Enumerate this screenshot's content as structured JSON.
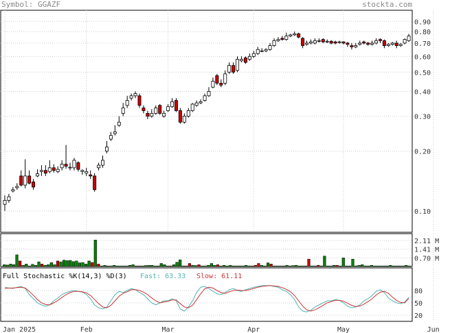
{
  "header": {
    "symbol_label": "Symbol: GGAZF",
    "site": "stockta.com"
  },
  "chart_data": {
    "type": "candlestick",
    "price": {
      "scale": "log",
      "ylim": [
        0.08,
        1.0
      ],
      "ticks": [
        "0.90",
        "0.80",
        "0.70",
        "0.60",
        "0.50",
        "0.40",
        "0.30",
        "0.20",
        "0.10"
      ],
      "tick_values": [
        0.9,
        0.8,
        0.7,
        0.6,
        0.5,
        0.4,
        0.3,
        0.2,
        0.1
      ],
      "close": [
        0.113,
        0.118,
        0.128,
        0.133,
        0.135,
        0.15,
        0.138,
        0.132,
        0.154,
        0.16,
        0.155,
        0.165,
        0.16,
        0.162,
        0.172,
        0.168,
        0.166,
        0.18,
        0.162,
        0.16,
        0.158,
        0.15,
        0.128,
        0.17,
        0.18,
        0.21,
        0.24,
        0.25,
        0.28,
        0.33,
        0.36,
        0.38,
        0.39,
        0.34,
        0.32,
        0.3,
        0.31,
        0.33,
        0.31,
        0.31,
        0.335,
        0.355,
        0.32,
        0.28,
        0.3,
        0.32,
        0.345,
        0.35,
        0.355,
        0.38,
        0.4,
        0.45,
        0.44,
        0.43,
        0.49,
        0.54,
        0.5,
        0.58,
        0.58,
        0.56,
        0.6,
        0.62,
        0.65,
        0.64,
        0.65,
        0.68,
        0.72,
        0.73,
        0.73,
        0.76,
        0.77,
        0.78,
        0.75,
        0.68,
        0.7,
        0.71,
        0.72,
        0.72,
        0.71,
        0.715,
        0.7,
        0.7,
        0.71,
        0.7,
        0.69,
        0.67,
        0.68,
        0.7,
        0.7,
        0.69,
        0.7,
        0.72,
        0.72,
        0.68,
        0.69,
        0.7,
        0.68,
        0.69,
        0.73,
        0.76
      ],
      "open": [
        0.108,
        0.113,
        0.126,
        0.131,
        0.15,
        0.135,
        0.15,
        0.14,
        0.15,
        0.158,
        0.16,
        0.158,
        0.165,
        0.158,
        0.165,
        0.172,
        0.165,
        0.165,
        0.175,
        0.158,
        0.155,
        0.152,
        0.15,
        0.165,
        0.17,
        0.2,
        0.23,
        0.245,
        0.27,
        0.31,
        0.34,
        0.37,
        0.38,
        0.38,
        0.33,
        0.31,
        0.3,
        0.31,
        0.34,
        0.3,
        0.32,
        0.335,
        0.36,
        0.32,
        0.28,
        0.3,
        0.32,
        0.34,
        0.35,
        0.36,
        0.38,
        0.42,
        0.48,
        0.44,
        0.44,
        0.5,
        0.54,
        0.51,
        0.57,
        0.59,
        0.58,
        0.6,
        0.62,
        0.64,
        0.64,
        0.65,
        0.68,
        0.72,
        0.74,
        0.73,
        0.76,
        0.77,
        0.78,
        0.74,
        0.69,
        0.7,
        0.7,
        0.72,
        0.73,
        0.71,
        0.715,
        0.71,
        0.705,
        0.71,
        0.7,
        0.68,
        0.67,
        0.69,
        0.71,
        0.7,
        0.69,
        0.7,
        0.73,
        0.72,
        0.68,
        0.69,
        0.7,
        0.68,
        0.7,
        0.72
      ],
      "high": [
        0.12,
        0.122,
        0.132,
        0.138,
        0.16,
        0.182,
        0.16,
        0.145,
        0.162,
        0.17,
        0.17,
        0.18,
        0.172,
        0.168,
        0.18,
        0.215,
        0.175,
        0.185,
        0.178,
        0.162,
        0.165,
        0.16,
        0.155,
        0.175,
        0.19,
        0.225,
        0.25,
        0.27,
        0.3,
        0.35,
        0.38,
        0.39,
        0.4,
        0.39,
        0.34,
        0.32,
        0.325,
        0.34,
        0.345,
        0.32,
        0.345,
        0.37,
        0.37,
        0.33,
        0.31,
        0.33,
        0.35,
        0.36,
        0.365,
        0.39,
        0.42,
        0.47,
        0.49,
        0.46,
        0.51,
        0.56,
        0.56,
        0.6,
        0.6,
        0.6,
        0.62,
        0.64,
        0.67,
        0.66,
        0.66,
        0.7,
        0.74,
        0.75,
        0.76,
        0.79,
        0.78,
        0.8,
        0.79,
        0.75,
        0.72,
        0.73,
        0.74,
        0.74,
        0.74,
        0.73,
        0.725,
        0.72,
        0.72,
        0.715,
        0.71,
        0.7,
        0.7,
        0.72,
        0.72,
        0.71,
        0.72,
        0.74,
        0.74,
        0.73,
        0.7,
        0.71,
        0.72,
        0.7,
        0.74,
        0.78
      ],
      "low": [
        0.1,
        0.11,
        0.124,
        0.128,
        0.133,
        0.13,
        0.136,
        0.128,
        0.148,
        0.15,
        0.15,
        0.155,
        0.156,
        0.155,
        0.16,
        0.163,
        0.16,
        0.16,
        0.158,
        0.152,
        0.15,
        0.145,
        0.125,
        0.16,
        0.165,
        0.195,
        0.225,
        0.24,
        0.265,
        0.3,
        0.33,
        0.36,
        0.37,
        0.33,
        0.31,
        0.29,
        0.295,
        0.305,
        0.305,
        0.295,
        0.315,
        0.33,
        0.315,
        0.275,
        0.275,
        0.295,
        0.315,
        0.335,
        0.345,
        0.355,
        0.375,
        0.415,
        0.43,
        0.42,
        0.43,
        0.49,
        0.49,
        0.5,
        0.56,
        0.55,
        0.57,
        0.59,
        0.61,
        0.63,
        0.63,
        0.64,
        0.67,
        0.71,
        0.72,
        0.72,
        0.75,
        0.76,
        0.74,
        0.66,
        0.68,
        0.69,
        0.69,
        0.705,
        0.7,
        0.7,
        0.69,
        0.69,
        0.695,
        0.69,
        0.67,
        0.65,
        0.66,
        0.68,
        0.69,
        0.68,
        0.68,
        0.69,
        0.7,
        0.66,
        0.67,
        0.68,
        0.66,
        0.67,
        0.69,
        0.71
      ]
    },
    "x_labels": [
      "Jan 2025",
      "Feb",
      "Mar",
      "Apr",
      "May",
      "Jun"
    ],
    "x_label_index": [
      0,
      20,
      40,
      61,
      83,
      105
    ],
    "volume": {
      "ticks": [
        "2.11 M",
        "1.41 M",
        "0.70 M"
      ],
      "tick_values": [
        2.11,
        1.41,
        0.7
      ],
      "max": 2.5,
      "values": [
        0.15,
        0.12,
        0.2,
        0.15,
        0.95,
        0.45,
        0.1,
        0.2,
        0.05,
        0.18,
        0.1,
        0.38,
        0.2,
        0.1,
        0.15,
        0.32,
        0.15,
        0.45,
        0.38,
        0.52,
        0.48,
        0.5,
        0.4,
        0.45,
        0.3,
        0.32,
        0.2,
        0.45,
        0.33,
        2.15,
        0.2,
        0.05,
        0.1,
        0.05,
        0.05,
        0.1,
        0.05,
        0.05,
        0.05,
        0.05,
        0.1,
        0.15,
        0.05,
        0.05,
        0.05,
        0.08,
        0.1,
        0.1,
        0.05,
        0.05,
        0.25,
        0.15,
        0.05,
        0.05,
        0.15,
        0.35,
        0.55,
        0.05,
        0.05,
        0.25,
        0.1,
        0.08,
        0.15,
        0.05,
        0.05,
        0.1,
        0.25,
        0.1,
        0.15,
        0.05,
        0.1,
        0.05,
        0.1,
        0.05,
        0.05,
        0.05,
        0.05,
        0.1,
        0.05,
        0.05,
        0.1,
        0.25,
        0.1,
        0.05,
        0.3,
        0.2,
        0.05,
        0.05,
        0.05,
        0.05,
        0.1,
        0.05,
        0.08,
        0.1,
        0.05,
        0.05,
        0.05,
        0.6,
        0.05,
        0.05,
        0.1,
        0.05,
        0.85,
        0.05,
        0.05,
        0.1,
        0.1,
        0.05,
        0.7,
        0.05,
        0.05,
        0.6,
        0.05,
        0.1,
        0.15,
        0.05,
        0.05,
        0.1,
        0.05,
        0.05,
        0.05,
        0.05,
        0.05,
        0.1,
        0.05,
        0.05,
        0.05,
        0.05,
        0.1,
        0.05
      ],
      "green_mask": [
        1,
        1,
        1,
        1,
        1,
        0,
        1,
        1,
        1,
        1,
        1,
        1,
        0,
        1,
        1,
        1,
        1,
        0,
        1,
        1,
        1,
        1,
        1,
        1,
        1,
        1,
        1,
        1,
        0,
        1,
        0,
        1,
        1,
        1,
        1,
        1,
        1,
        1,
        1,
        1,
        1,
        1,
        0,
        1,
        1,
        1,
        1,
        1,
        1,
        1,
        1,
        1,
        1,
        0,
        1,
        1,
        1,
        1,
        1,
        0,
        1,
        1,
        0,
        1,
        1,
        1,
        1,
        1,
        0,
        1,
        1,
        1,
        1,
        1,
        1,
        1,
        1,
        1,
        1,
        1,
        0,
        0,
        1,
        1,
        1,
        0,
        1,
        1,
        1,
        1,
        1,
        1,
        1,
        1,
        1,
        1,
        1,
        0,
        1,
        1,
        0,
        1,
        1,
        1,
        1,
        1,
        0,
        1,
        1,
        1,
        1,
        1,
        1,
        1,
        1,
        1,
        1,
        1,
        1,
        1,
        1,
        1,
        1,
        1,
        1,
        1,
        1,
        1,
        1,
        1
      ]
    },
    "stochastic": {
      "title": "Full Stochastic %K(14,3) %D(3)",
      "fast_label": "Fast: 63.33",
      "slow_label": "Slow: 61.11",
      "ticks": [
        "80",
        "50",
        "20"
      ],
      "tick_values": [
        80,
        50,
        20
      ],
      "fast": [
        88,
        86,
        85,
        88,
        90,
        85,
        70,
        60,
        50,
        45,
        42,
        45,
        55,
        62,
        70,
        75,
        78,
        80,
        78,
        76,
        70,
        60,
        45,
        38,
        35,
        40,
        55,
        70,
        78,
        75,
        80,
        85,
        82,
        75,
        70,
        60,
        50,
        45,
        50,
        55,
        55,
        60,
        55,
        35,
        30,
        40,
        55,
        75,
        88,
        90,
        85,
        78,
        72,
        70,
        75,
        82,
        85,
        80,
        78,
        82,
        85,
        88,
        90,
        92,
        92,
        92,
        90,
        88,
        82,
        78,
        70,
        58,
        40,
        30,
        28,
        32,
        40,
        45,
        50,
        55,
        55,
        58,
        56,
        50,
        42,
        38,
        40,
        45,
        55,
        60,
        68,
        78,
        82,
        75,
        62,
        55,
        50,
        48,
        52,
        63
      ],
      "slow": [
        85,
        86,
        86,
        87,
        88,
        86,
        78,
        68,
        58,
        50,
        46,
        45,
        50,
        56,
        63,
        70,
        75,
        78,
        78,
        77,
        74,
        68,
        58,
        48,
        40,
        38,
        44,
        55,
        66,
        73,
        77,
        82,
        82,
        80,
        76,
        70,
        62,
        55,
        50,
        52,
        54,
        57,
        57,
        48,
        40,
        38,
        44,
        58,
        72,
        84,
        88,
        86,
        80,
        75,
        73,
        77,
        80,
        81,
        80,
        80,
        82,
        85,
        88,
        90,
        91,
        92,
        91,
        90,
        87,
        83,
        77,
        68,
        55,
        42,
        33,
        30,
        33,
        38,
        44,
        50,
        53,
        56,
        56,
        54,
        49,
        44,
        41,
        42,
        47,
        53,
        60,
        69,
        76,
        78,
        73,
        64,
        56,
        51,
        50,
        61
      ]
    },
    "colors": {
      "up": "#ffffff",
      "down": "#cc0000",
      "vol_up": "#008000",
      "vol_down": "#cc0000",
      "fast": "#4fb3b3",
      "slow": "#cc3333"
    }
  }
}
